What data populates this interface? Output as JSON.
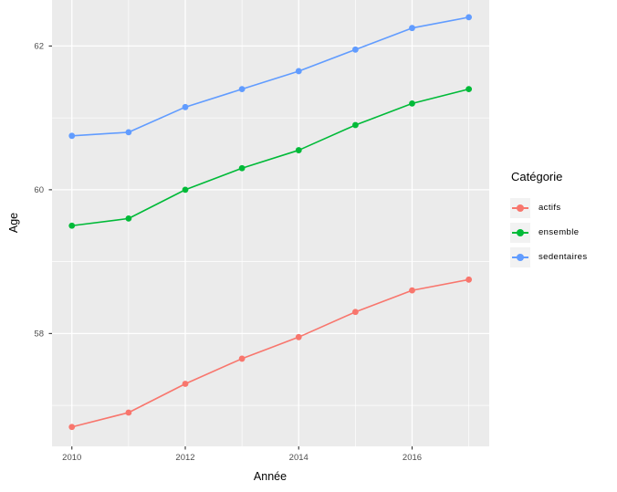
{
  "chart_data": {
    "type": "line",
    "title": "",
    "xlabel": "Année",
    "ylabel": "Age",
    "legend_title": "Catégorie",
    "legend_position": "right",
    "grid": true,
    "x": [
      2010,
      2011,
      2012,
      2013,
      2014,
      2015,
      2016,
      2017
    ],
    "series": [
      {
        "name": "actifs",
        "color": "#F8766D",
        "values": [
          56.7,
          56.9,
          57.3,
          57.65,
          57.95,
          58.3,
          58.6,
          58.75
        ]
      },
      {
        "name": "ensemble",
        "color": "#00BA38",
        "values": [
          59.5,
          59.6,
          60.0,
          60.3,
          60.55,
          60.9,
          61.2,
          61.4
        ]
      },
      {
        "name": "sedentaires",
        "color": "#619CFF",
        "values": [
          60.75,
          60.8,
          61.15,
          61.4,
          61.65,
          61.95,
          62.25,
          62.4
        ]
      }
    ],
    "xlim": [
      2009.65,
      2017.36
    ],
    "ylim": [
      56.43,
      62.64
    ],
    "x_major_ticks": [
      2010,
      2012,
      2014,
      2016
    ],
    "x_minor_ticks": [
      2011,
      2013,
      2015,
      2017
    ],
    "y_major_ticks": [
      58,
      60,
      62
    ],
    "y_minor_ticks": [
      57,
      59,
      61
    ],
    "x_tick_labels": [
      "2010",
      "2012",
      "2014",
      "2016"
    ],
    "y_tick_labels": [
      "58",
      "60",
      "62"
    ],
    "colors": {
      "panel_background": "#EBEBEB",
      "grid": "#FFFFFF",
      "legend_key_background": "#F2F2F2",
      "tick_label": "#4D4D4D",
      "tick_mark": "#333333",
      "axis_title": "#000000"
    }
  }
}
